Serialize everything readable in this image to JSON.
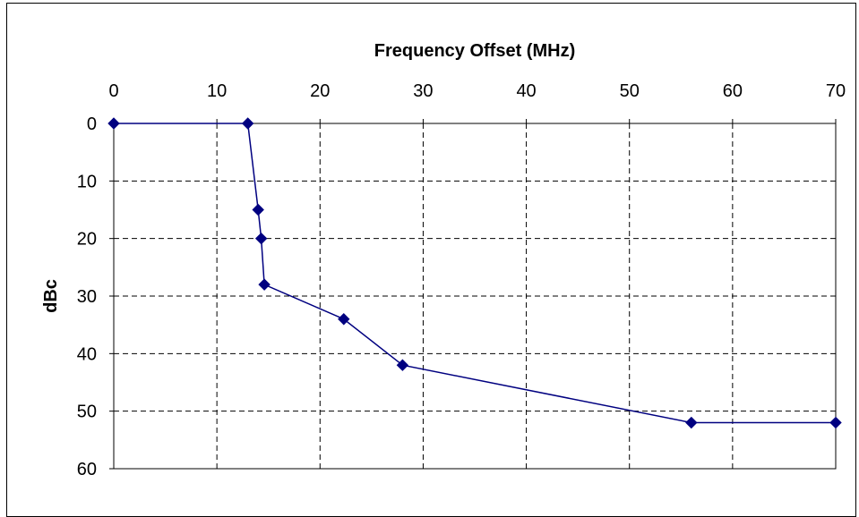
{
  "chart_data": {
    "type": "line",
    "title": "",
    "xlabel": "Frequency Offset (MHz)",
    "ylabel": "dBc",
    "xlim": [
      0,
      70
    ],
    "ylim": [
      0,
      60
    ],
    "y_inverted": true,
    "x_axis_position": "top",
    "grid": true,
    "grid_style": "dashed",
    "legend": "none",
    "x_ticks": [
      0,
      10,
      20,
      30,
      40,
      50,
      60,
      70
    ],
    "y_ticks": [
      0,
      10,
      20,
      30,
      40,
      50,
      60
    ],
    "x_tick_labels": [
      "0",
      "10",
      "20",
      "30",
      "40",
      "50",
      "60",
      "70"
    ],
    "y_tick_labels": [
      "0",
      "10",
      "20",
      "30",
      "40",
      "50",
      "60"
    ],
    "series": [
      {
        "color": "#000080",
        "marker": "diamond",
        "x": [
          0,
          13,
          14,
          14.3,
          14.6,
          22.3,
          28,
          56,
          70
        ],
        "y": [
          0,
          0,
          15,
          20,
          28,
          34,
          42,
          52,
          52
        ]
      }
    ]
  }
}
